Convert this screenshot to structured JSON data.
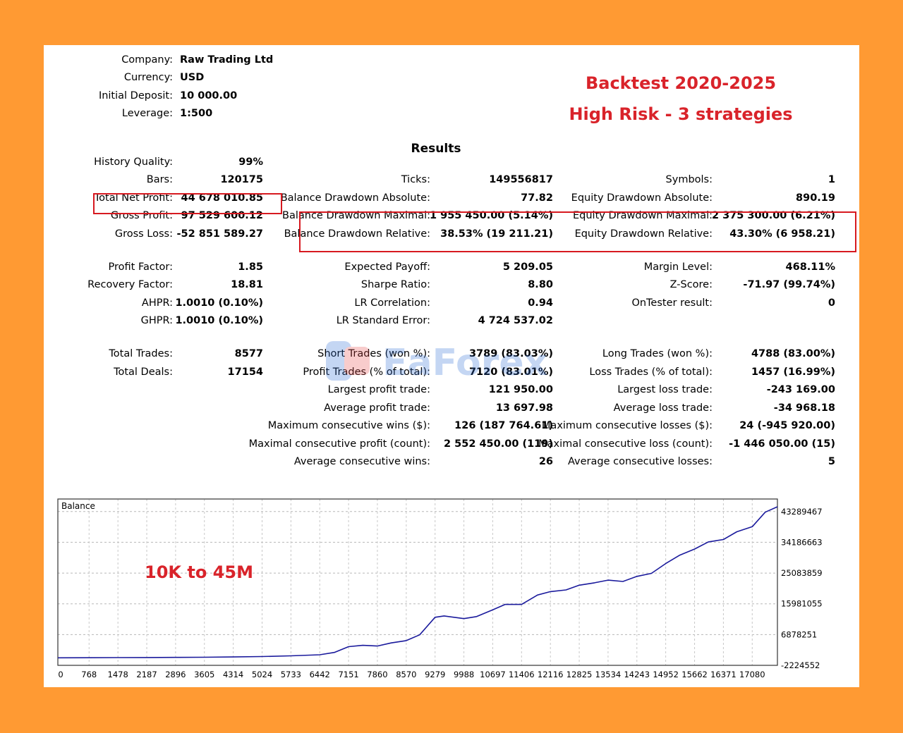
{
  "header": {
    "company_label": "Company:",
    "company": "Raw Trading Ltd",
    "currency_label": "Currency:",
    "currency": "USD",
    "deposit_label": "Initial Deposit:",
    "deposit": "10 000.00",
    "leverage_label": "Leverage:",
    "leverage": "1:500"
  },
  "annotations": {
    "title_line1": "Backtest 2020-2025",
    "title_line2": "High Risk - 3 strategies",
    "chart_note": "10K to 45M",
    "watermark": "EaForex",
    "highlight_color": "#d71920",
    "text_color": "#d9232a"
  },
  "results": {
    "title": "Results",
    "col1": [
      {
        "label": "History Quality:",
        "value": "99%"
      },
      {
        "label": "Bars:",
        "value": "120175"
      },
      {
        "label": "Total Net Profit:",
        "value": "44 678 010.85"
      },
      {
        "label": "Gross Profit:",
        "value": "97 529 600.12"
      },
      {
        "label": "Gross Loss:",
        "value": "-52 851 589.27"
      },
      {
        "label": "Profit Factor:",
        "value": "1.85"
      },
      {
        "label": "Recovery Factor:",
        "value": "18.81"
      },
      {
        "label": "AHPR:",
        "value": "1.0010 (0.10%)"
      },
      {
        "label": "GHPR:",
        "value": "1.0010 (0.10%)"
      },
      {
        "label": "Total Trades:",
        "value": "8577"
      },
      {
        "label": "Total Deals:",
        "value": "17154"
      }
    ],
    "col2": [
      {
        "label": "Ticks:",
        "value": "149556817"
      },
      {
        "label": "Balance Drawdown Absolute:",
        "value": "77.82"
      },
      {
        "label": "Balance Drawdown Maximal:",
        "value": "1 955 450.00 (5.14%)"
      },
      {
        "label": "Balance Drawdown Relative:",
        "value": "38.53% (19 211.21)"
      },
      {
        "label": "Expected Payoff:",
        "value": "5 209.05"
      },
      {
        "label": "Sharpe Ratio:",
        "value": "8.80"
      },
      {
        "label": "LR Correlation:",
        "value": "0.94"
      },
      {
        "label": "LR Standard Error:",
        "value": "4 724 537.02"
      },
      {
        "label": "Short Trades (won %):",
        "value": "3789 (83.03%)"
      },
      {
        "label": "Profit Trades (% of total):",
        "value": "7120 (83.01%)"
      },
      {
        "label": "Largest profit trade:",
        "value": "121 950.00"
      },
      {
        "label": "Average profit trade:",
        "value": "13 697.98"
      },
      {
        "label": "Maximum consecutive wins ($):",
        "value": "126 (187 764.61)"
      },
      {
        "label": "Maximal consecutive profit (count):",
        "value": "2 552 450.00 (119)"
      },
      {
        "label": "Average consecutive wins:",
        "value": "26"
      }
    ],
    "col3": [
      {
        "label": "Symbols:",
        "value": "1"
      },
      {
        "label": "Equity Drawdown Absolute:",
        "value": "890.19"
      },
      {
        "label": "Equity Drawdown Maximal:",
        "value": "2 375 300.00 (6.21%)"
      },
      {
        "label": "Equity Drawdown Relative:",
        "value": "43.30% (6 958.21)"
      },
      {
        "label": "Margin Level:",
        "value": "468.11%"
      },
      {
        "label": "Z-Score:",
        "value": "-71.97 (99.74%)"
      },
      {
        "label": "OnTester result:",
        "value": "0"
      },
      {
        "label": "Long Trades (won %):",
        "value": "4788 (83.00%)"
      },
      {
        "label": "Loss Trades (% of total):",
        "value": "1457 (16.99%)"
      },
      {
        "label": "Largest loss trade:",
        "value": "-243 169.00"
      },
      {
        "label": "Average loss trade:",
        "value": "-34 968.18"
      },
      {
        "label": "Maximum consecutive losses ($):",
        "value": "24 (-945 920.00)"
      },
      {
        "label": "Maximal consecutive loss (count):",
        "value": "-1 446 050.00 (15)"
      },
      {
        "label": "Average consecutive losses:",
        "value": "5"
      }
    ]
  },
  "chart_data": {
    "type": "line",
    "title": "Balance",
    "line_color": "#1a1a9c",
    "grid": true,
    "x_ticks": [
      "0",
      "768",
      "1478",
      "2187",
      "2896",
      "3605",
      "4314",
      "5024",
      "5733",
      "6442",
      "7151",
      "7860",
      "8570",
      "9279",
      "9988",
      "10697",
      "11406",
      "12116",
      "12825",
      "13534",
      "14243",
      "14952",
      "15662",
      "16371",
      "17080"
    ],
    "y_ticks": [
      "-2224552",
      "6878251",
      "15981055",
      "25083859",
      "34186663",
      "43289467"
    ],
    "xlim": [
      0,
      17700
    ],
    "ylim": [
      -2224552,
      47000000
    ],
    "series": [
      {
        "x": [
          0,
          768,
          1478,
          2187,
          2896,
          3605,
          4314,
          5024,
          5733,
          6442,
          6800,
          7151,
          7500,
          7860,
          8200,
          8570,
          8900,
          9279,
          9500,
          9988,
          10300,
          10697,
          11000,
          11406,
          11800,
          12116,
          12500,
          12825,
          13200,
          13534,
          13900,
          14243,
          14600,
          14952,
          15300,
          15662,
          16000,
          16371,
          16700,
          17080,
          17400,
          17700
        ],
        "y": [
          10000,
          30000,
          60000,
          90000,
          130000,
          180000,
          250000,
          380000,
          600000,
          900000,
          1600000,
          3300000,
          3700000,
          3500000,
          4400000,
          5100000,
          6800000,
          12000000,
          12400000,
          11600000,
          12200000,
          14200000,
          15800000,
          15800000,
          18600000,
          19600000,
          20100000,
          21500000,
          22200000,
          23000000,
          22600000,
          24100000,
          25000000,
          27900000,
          30400000,
          32200000,
          34300000,
          35000000,
          37300000,
          38800000,
          43100000,
          44700000
        ]
      }
    ]
  }
}
